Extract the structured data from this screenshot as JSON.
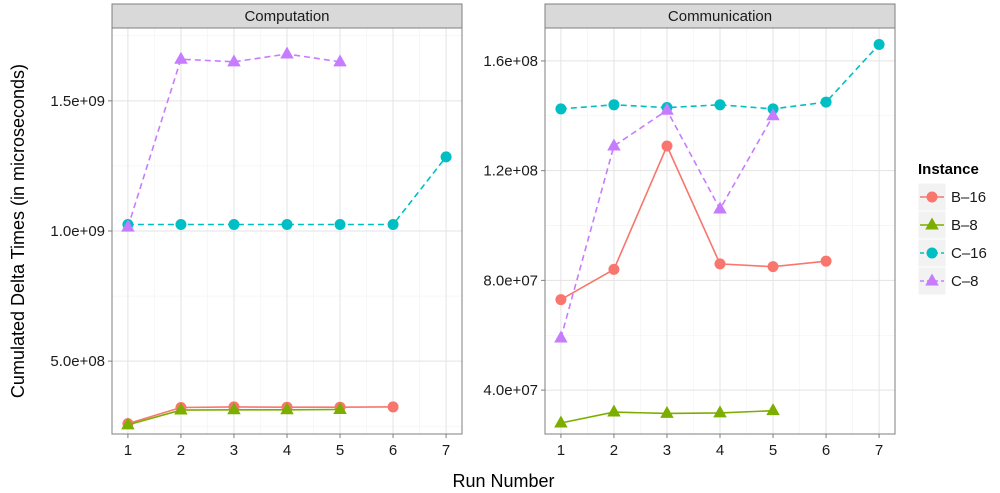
{
  "chart_data": {
    "type": "line",
    "xlabel": "Run Number",
    "ylabel": "Cumulated Delta Times (in microseconds)",
    "legend": {
      "title": "Instance",
      "position": "right"
    },
    "colors": {
      "B-16": "#F8766D",
      "B-8": "#7CAE00",
      "C-16": "#00BFC4",
      "C-8": "#C77CFF"
    },
    "grid": true,
    "facets": [
      {
        "title": "Computation",
        "xlim": [
          0.7,
          7.3
        ],
        "ylim": [
          220000000.0,
          1780000000.0
        ],
        "x_ticks": [
          1,
          2,
          3,
          4,
          5,
          6,
          7
        ],
        "y_ticks": [
          {
            "value": 500000000.0,
            "label": "5.0e+08"
          },
          {
            "value": 1000000000.0,
            "label": "1.0e+09"
          },
          {
            "value": 1500000000.0,
            "label": "1.5e+09"
          }
        ],
        "series": [
          {
            "name": "B-16",
            "x": [
              1,
              2,
              3,
              4,
              5,
              6
            ],
            "values": [
              260000000.0,
              322000000.0,
              324000000.0,
              323000000.0,
              323000000.0,
              324000000.0
            ]
          },
          {
            "name": "B-8",
            "x": [
              1,
              2,
              3,
              4,
              5
            ],
            "values": [
              255000000.0,
              312000000.0,
              313000000.0,
              313000000.0,
              314000000.0
            ]
          },
          {
            "name": "C-16",
            "x": [
              1,
              2,
              3,
              4,
              5,
              6,
              7
            ],
            "values": [
              1025000000.0,
              1025000000.0,
              1025000000.0,
              1025000000.0,
              1025000000.0,
              1025000000.0,
              1285000000.0
            ]
          },
          {
            "name": "C-8",
            "x": [
              1,
              2,
              3,
              4,
              5
            ],
            "values": [
              1015000000.0,
              1660000000.0,
              1650000000.0,
              1680000000.0,
              1650000000.0
            ]
          }
        ]
      },
      {
        "title": "Communication",
        "xlim": [
          0.7,
          7.3
        ],
        "ylim": [
          24000000.0,
          172000000.0
        ],
        "x_ticks": [
          1,
          2,
          3,
          4,
          5,
          6,
          7
        ],
        "y_ticks": [
          {
            "value": 40000000.0,
            "label": "4.0e+07"
          },
          {
            "value": 80000000.0,
            "label": "8.0e+07"
          },
          {
            "value": 120000000.0,
            "label": "1.2e+08"
          },
          {
            "value": 160000000.0,
            "label": "1.6e+08"
          }
        ],
        "series": [
          {
            "name": "B-16",
            "x": [
              1,
              2,
              3,
              4,
              5,
              6
            ],
            "values": [
              73000000.0,
              84000000.0,
              129000000.0,
              86000000.0,
              85000000.0,
              87000000.0
            ]
          },
          {
            "name": "B-8",
            "x": [
              1,
              2,
              3,
              4,
              5
            ],
            "values": [
              28000000.0,
              32000000.0,
              31500000.0,
              31700000.0,
              32500000.0
            ]
          },
          {
            "name": "C-16",
            "x": [
              1,
              2,
              3,
              4,
              5,
              6,
              7
            ],
            "values": [
              142500000.0,
              144000000.0,
              143000000.0,
              144000000.0,
              142500000.0,
              145000000.0,
              166000000.0
            ]
          },
          {
            "name": "C-8",
            "x": [
              1,
              2,
              3,
              4,
              5
            ],
            "values": [
              59000000.0,
              129000000.0,
              142000000.0,
              106000000.0,
              140000000.0
            ]
          }
        ]
      }
    ]
  },
  "series_styles": {
    "B-16": {
      "shape": "circle",
      "dash": "solid"
    },
    "B-8": {
      "shape": "triangle",
      "dash": "solid"
    },
    "C-16": {
      "shape": "circle",
      "dash": "dashed"
    },
    "C-8": {
      "shape": "triangle",
      "dash": "dashed"
    }
  }
}
